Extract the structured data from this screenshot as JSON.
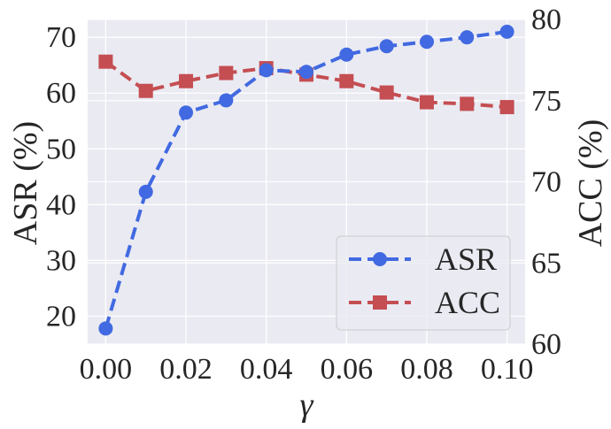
{
  "chart_data": {
    "type": "line",
    "xlabel": "γ",
    "ylabel_left": "ASR (%)",
    "ylabel_right": "ACC (%)",
    "x": [
      0.0,
      0.01,
      0.02,
      0.03,
      0.04,
      0.05,
      0.06,
      0.07,
      0.08,
      0.09,
      0.1
    ],
    "x_ticks": [
      "0.00",
      "0.02",
      "0.04",
      "0.06",
      "0.08",
      "0.10"
    ],
    "x_tick_values": [
      0.0,
      0.02,
      0.04,
      0.06,
      0.08,
      0.1
    ],
    "xlim": [
      -0.0045,
      0.1045
    ],
    "y_left_ticks": [
      "20",
      "30",
      "40",
      "50",
      "60",
      "70"
    ],
    "y_left_tick_values": [
      20,
      30,
      40,
      50,
      60,
      70
    ],
    "ylim_left": [
      15.0,
      73.2
    ],
    "y_right_ticks": [
      "60",
      "65",
      "70",
      "75",
      "80"
    ],
    "y_right_tick_values": [
      60,
      65,
      70,
      75,
      80
    ],
    "ylim_right": [
      60,
      80
    ],
    "grid": true,
    "legend_position": "lower-right",
    "series": [
      {
        "name": "ASR",
        "axis": "left",
        "color": "#4169E1",
        "marker": "circle",
        "values": [
          17.8,
          42.3,
          56.5,
          58.7,
          64.1,
          63.8,
          66.9,
          68.4,
          69.2,
          70.0,
          71.0
        ]
      },
      {
        "name": "ACC",
        "axis": "right",
        "color": "#C44E52",
        "marker": "square",
        "values": [
          77.4,
          75.6,
          76.2,
          76.7,
          77.0,
          76.6,
          76.2,
          75.5,
          74.9,
          74.8,
          74.6
        ]
      }
    ]
  }
}
